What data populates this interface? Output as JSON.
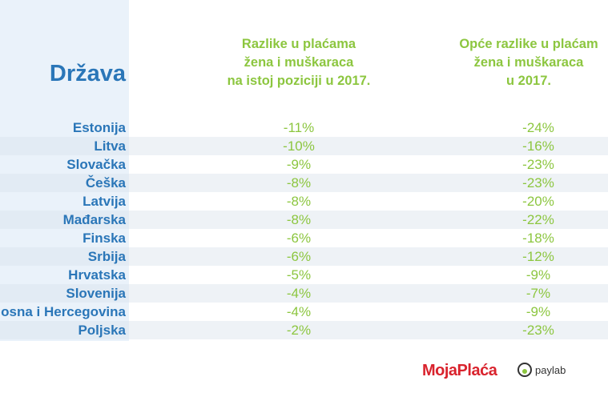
{
  "table": {
    "header": [
      "Država",
      [
        "Razlike u plaćama",
        "žena i muškaraca",
        "na istoj poziciji u 2017."
      ],
      [
        "Opće razlike u plaćam",
        "žena i muškaraca",
        "u 2017."
      ]
    ],
    "rows": [
      [
        "Estonija",
        "-11%",
        "-24%"
      ],
      [
        "Litva",
        "-10%",
        "-16%"
      ],
      [
        "Slovačka",
        "-9%",
        "-23%"
      ],
      [
        "Češka",
        "-8%",
        "-23%"
      ],
      [
        "Latvija",
        "-8%",
        "-20%"
      ],
      [
        "Mađarska",
        "-8%",
        "-22%"
      ],
      [
        "Finska",
        "-6%",
        "-18%"
      ],
      [
        "Srbija",
        "-6%",
        "-12%"
      ],
      [
        "Hrvatska",
        "-5%",
        "-9%"
      ],
      [
        "Slovenija",
        "-4%",
        "-7%"
      ],
      [
        "osna i Hercegovina",
        "-4%",
        "-9%"
      ],
      [
        "Poljska",
        "-2%",
        "-23%"
      ]
    ]
  },
  "footer": {
    "logos": [
      "MojaPlaća",
      "paylab"
    ]
  }
}
